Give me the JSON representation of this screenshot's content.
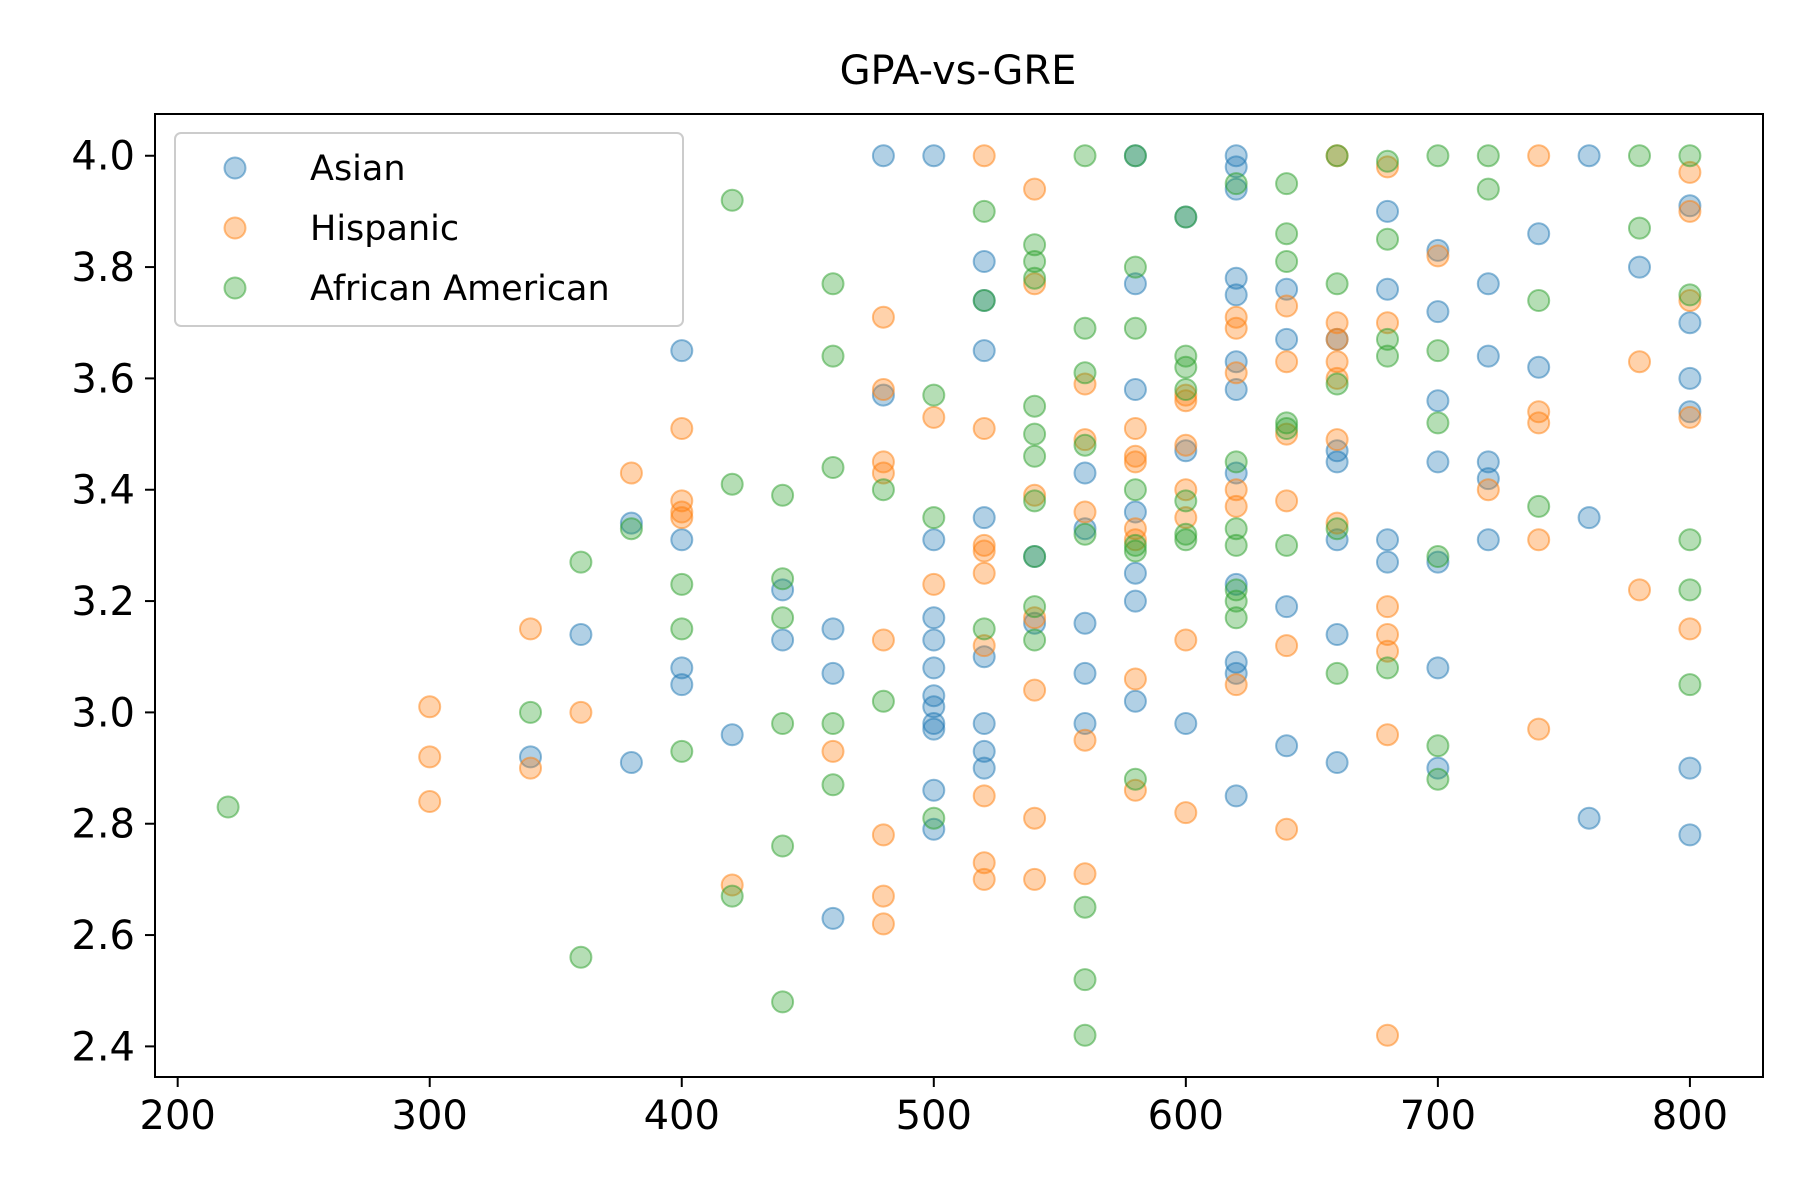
{
  "chart_data": {
    "type": "scatter",
    "title": "GPA-vs-GRE",
    "xlabel": "",
    "ylabel": "",
    "xlim": [
      191,
      829
    ],
    "ylim": [
      2.345,
      4.075
    ],
    "xticks": [
      200,
      300,
      400,
      500,
      600,
      700,
      800
    ],
    "xtick_labels": [
      "200",
      "300",
      "400",
      "500",
      "600",
      "700",
      "800"
    ],
    "yticks": [
      2.4,
      2.6,
      2.8,
      3.0,
      3.2,
      3.4,
      3.6,
      3.8,
      4.0
    ],
    "ytick_labels": [
      "2.4",
      "2.6",
      "2.8",
      "3.0",
      "3.2",
      "3.4",
      "3.6",
      "3.8",
      "4.0"
    ],
    "grid": false,
    "legend_position": "top-left",
    "marker_alpha": 0.35,
    "series": [
      {
        "name": "Asian",
        "color": "#1f77b4",
        "points": [
          [
            340,
            2.92
          ],
          [
            360,
            3.14
          ],
          [
            380,
            3.34
          ],
          [
            380,
            2.91
          ],
          [
            400,
            3.65
          ],
          [
            400,
            3.31
          ],
          [
            400,
            3.08
          ],
          [
            400,
            3.05
          ],
          [
            420,
            2.96
          ],
          [
            440,
            3.22
          ],
          [
            440,
            3.13
          ],
          [
            460,
            3.15
          ],
          [
            460,
            3.07
          ],
          [
            460,
            2.63
          ],
          [
            480,
            4.0
          ],
          [
            480,
            3.57
          ],
          [
            500,
            4.0
          ],
          [
            500,
            3.31
          ],
          [
            500,
            3.17
          ],
          [
            500,
            3.13
          ],
          [
            500,
            3.08
          ],
          [
            500,
            3.03
          ],
          [
            500,
            3.01
          ],
          [
            500,
            2.98
          ],
          [
            500,
            2.97
          ],
          [
            500,
            2.86
          ],
          [
            500,
            2.79
          ],
          [
            520,
            3.81
          ],
          [
            520,
            3.74
          ],
          [
            520,
            3.65
          ],
          [
            520,
            3.35
          ],
          [
            520,
            3.1
          ],
          [
            520,
            2.98
          ],
          [
            520,
            2.93
          ],
          [
            520,
            2.9
          ],
          [
            540,
            3.28
          ],
          [
            540,
            3.16
          ],
          [
            560,
            3.43
          ],
          [
            560,
            3.33
          ],
          [
            560,
            3.16
          ],
          [
            560,
            3.07
          ],
          [
            560,
            2.98
          ],
          [
            580,
            4.0
          ],
          [
            580,
            3.77
          ],
          [
            580,
            3.58
          ],
          [
            580,
            3.36
          ],
          [
            580,
            3.25
          ],
          [
            580,
            3.2
          ],
          [
            580,
            3.02
          ],
          [
            600,
            3.89
          ],
          [
            600,
            3.47
          ],
          [
            600,
            2.98
          ],
          [
            620,
            4.0
          ],
          [
            620,
            3.98
          ],
          [
            620,
            3.94
          ],
          [
            620,
            3.78
          ],
          [
            620,
            3.75
          ],
          [
            620,
            3.63
          ],
          [
            620,
            3.58
          ],
          [
            620,
            3.43
          ],
          [
            620,
            3.23
          ],
          [
            620,
            3.09
          ],
          [
            620,
            3.07
          ],
          [
            620,
            2.85
          ],
          [
            640,
            3.76
          ],
          [
            640,
            3.67
          ],
          [
            640,
            3.19
          ],
          [
            640,
            2.94
          ],
          [
            660,
            3.67
          ],
          [
            660,
            3.47
          ],
          [
            660,
            3.45
          ],
          [
            660,
            3.31
          ],
          [
            660,
            3.14
          ],
          [
            660,
            2.91
          ],
          [
            680,
            3.9
          ],
          [
            680,
            3.76
          ],
          [
            680,
            3.31
          ],
          [
            680,
            3.27
          ],
          [
            700,
            3.83
          ],
          [
            700,
            3.72
          ],
          [
            700,
            3.56
          ],
          [
            700,
            3.45
          ],
          [
            700,
            3.27
          ],
          [
            700,
            3.08
          ],
          [
            700,
            2.9
          ],
          [
            720,
            3.77
          ],
          [
            720,
            3.64
          ],
          [
            720,
            3.45
          ],
          [
            720,
            3.42
          ],
          [
            720,
            3.31
          ],
          [
            740,
            3.86
          ],
          [
            740,
            3.62
          ],
          [
            760,
            4.0
          ],
          [
            760,
            3.35
          ],
          [
            760,
            2.81
          ],
          [
            780,
            3.8
          ],
          [
            800,
            3.91
          ],
          [
            800,
            3.7
          ],
          [
            800,
            3.6
          ],
          [
            800,
            3.54
          ],
          [
            800,
            2.9
          ],
          [
            800,
            2.78
          ]
        ]
      },
      {
        "name": "Hispanic",
        "color": "#ff7f0e",
        "points": [
          [
            300,
            3.01
          ],
          [
            300,
            2.92
          ],
          [
            300,
            2.84
          ],
          [
            340,
            3.15
          ],
          [
            340,
            2.9
          ],
          [
            360,
            3.0
          ],
          [
            380,
            3.43
          ],
          [
            400,
            3.51
          ],
          [
            400,
            3.38
          ],
          [
            400,
            3.36
          ],
          [
            400,
            3.35
          ],
          [
            420,
            2.69
          ],
          [
            460,
            2.93
          ],
          [
            480,
            3.71
          ],
          [
            480,
            3.58
          ],
          [
            480,
            3.45
          ],
          [
            480,
            3.43
          ],
          [
            480,
            3.13
          ],
          [
            480,
            2.78
          ],
          [
            480,
            2.67
          ],
          [
            480,
            2.62
          ],
          [
            500,
            3.53
          ],
          [
            500,
            3.23
          ],
          [
            520,
            4.0
          ],
          [
            520,
            3.51
          ],
          [
            520,
            3.3
          ],
          [
            520,
            3.29
          ],
          [
            520,
            3.25
          ],
          [
            520,
            3.12
          ],
          [
            520,
            2.85
          ],
          [
            520,
            2.73
          ],
          [
            520,
            2.7
          ],
          [
            540,
            3.94
          ],
          [
            540,
            3.77
          ],
          [
            540,
            3.39
          ],
          [
            540,
            3.17
          ],
          [
            540,
            3.04
          ],
          [
            540,
            2.81
          ],
          [
            540,
            2.7
          ],
          [
            560,
            3.59
          ],
          [
            560,
            3.49
          ],
          [
            560,
            3.36
          ],
          [
            560,
            2.95
          ],
          [
            560,
            2.71
          ],
          [
            580,
            3.51
          ],
          [
            580,
            3.46
          ],
          [
            580,
            3.45
          ],
          [
            580,
            3.33
          ],
          [
            580,
            3.31
          ],
          [
            580,
            3.06
          ],
          [
            580,
            2.86
          ],
          [
            600,
            3.57
          ],
          [
            600,
            3.56
          ],
          [
            600,
            3.48
          ],
          [
            600,
            3.4
          ],
          [
            600,
            3.35
          ],
          [
            600,
            3.13
          ],
          [
            600,
            2.82
          ],
          [
            620,
            3.71
          ],
          [
            620,
            3.69
          ],
          [
            620,
            3.61
          ],
          [
            620,
            3.4
          ],
          [
            620,
            3.37
          ],
          [
            620,
            3.05
          ],
          [
            640,
            3.73
          ],
          [
            640,
            3.63
          ],
          [
            640,
            3.5
          ],
          [
            640,
            3.38
          ],
          [
            640,
            3.12
          ],
          [
            640,
            2.79
          ],
          [
            660,
            4.0
          ],
          [
            660,
            3.7
          ],
          [
            660,
            3.67
          ],
          [
            660,
            3.63
          ],
          [
            660,
            3.6
          ],
          [
            660,
            3.49
          ],
          [
            660,
            3.34
          ],
          [
            680,
            3.98
          ],
          [
            680,
            3.7
          ],
          [
            680,
            3.19
          ],
          [
            680,
            3.14
          ],
          [
            680,
            3.11
          ],
          [
            680,
            2.96
          ],
          [
            680,
            2.42
          ],
          [
            700,
            3.82
          ],
          [
            720,
            3.4
          ],
          [
            740,
            4.0
          ],
          [
            740,
            3.54
          ],
          [
            740,
            3.52
          ],
          [
            740,
            3.31
          ],
          [
            740,
            2.97
          ],
          [
            780,
            3.63
          ],
          [
            780,
            3.22
          ],
          [
            800,
            3.97
          ],
          [
            800,
            3.9
          ],
          [
            800,
            3.74
          ],
          [
            800,
            3.53
          ],
          [
            800,
            3.15
          ]
        ]
      },
      {
        "name": "African American",
        "color": "#2ca02c",
        "points": [
          [
            220,
            2.83
          ],
          [
            340,
            3.0
          ],
          [
            360,
            3.27
          ],
          [
            360,
            2.56
          ],
          [
            380,
            3.33
          ],
          [
            400,
            3.23
          ],
          [
            400,
            3.15
          ],
          [
            400,
            2.93
          ],
          [
            420,
            3.92
          ],
          [
            420,
            3.41
          ],
          [
            420,
            2.67
          ],
          [
            440,
            3.39
          ],
          [
            440,
            3.24
          ],
          [
            440,
            3.17
          ],
          [
            440,
            2.98
          ],
          [
            440,
            2.76
          ],
          [
            440,
            2.48
          ],
          [
            460,
            3.77
          ],
          [
            460,
            3.64
          ],
          [
            460,
            3.44
          ],
          [
            460,
            2.98
          ],
          [
            460,
            2.87
          ],
          [
            480,
            3.4
          ],
          [
            480,
            3.02
          ],
          [
            500,
            3.57
          ],
          [
            500,
            3.35
          ],
          [
            500,
            2.81
          ],
          [
            520,
            3.9
          ],
          [
            520,
            3.74
          ],
          [
            520,
            3.15
          ],
          [
            540,
            3.84
          ],
          [
            540,
            3.81
          ],
          [
            540,
            3.78
          ],
          [
            540,
            3.55
          ],
          [
            540,
            3.5
          ],
          [
            540,
            3.46
          ],
          [
            540,
            3.38
          ],
          [
            540,
            3.28
          ],
          [
            540,
            3.19
          ],
          [
            540,
            3.13
          ],
          [
            560,
            4.0
          ],
          [
            560,
            3.69
          ],
          [
            560,
            3.61
          ],
          [
            560,
            3.48
          ],
          [
            560,
            3.32
          ],
          [
            560,
            2.65
          ],
          [
            560,
            2.52
          ],
          [
            560,
            2.42
          ],
          [
            580,
            4.0
          ],
          [
            580,
            3.8
          ],
          [
            580,
            3.69
          ],
          [
            580,
            3.4
          ],
          [
            580,
            3.3
          ],
          [
            580,
            3.29
          ],
          [
            580,
            2.88
          ],
          [
            600,
            3.89
          ],
          [
            600,
            3.64
          ],
          [
            600,
            3.62
          ],
          [
            600,
            3.58
          ],
          [
            600,
            3.38
          ],
          [
            600,
            3.32
          ],
          [
            600,
            3.31
          ],
          [
            620,
            3.95
          ],
          [
            620,
            3.45
          ],
          [
            620,
            3.33
          ],
          [
            620,
            3.3
          ],
          [
            620,
            3.22
          ],
          [
            620,
            3.2
          ],
          [
            620,
            3.17
          ],
          [
            640,
            3.95
          ],
          [
            640,
            3.86
          ],
          [
            640,
            3.81
          ],
          [
            640,
            3.52
          ],
          [
            640,
            3.51
          ],
          [
            640,
            3.3
          ],
          [
            660,
            4.0
          ],
          [
            660,
            3.77
          ],
          [
            660,
            3.59
          ],
          [
            660,
            3.33
          ],
          [
            660,
            3.07
          ],
          [
            680,
            3.99
          ],
          [
            680,
            3.85
          ],
          [
            680,
            3.67
          ],
          [
            680,
            3.64
          ],
          [
            680,
            3.08
          ],
          [
            700,
            4.0
          ],
          [
            700,
            3.65
          ],
          [
            700,
            3.52
          ],
          [
            700,
            3.28
          ],
          [
            700,
            2.94
          ],
          [
            700,
            2.88
          ],
          [
            720,
            4.0
          ],
          [
            720,
            3.94
          ],
          [
            740,
            3.74
          ],
          [
            740,
            3.37
          ],
          [
            780,
            4.0
          ],
          [
            780,
            3.87
          ],
          [
            800,
            4.0
          ],
          [
            800,
            3.75
          ],
          [
            800,
            3.31
          ],
          [
            800,
            3.22
          ],
          [
            800,
            3.05
          ]
        ]
      }
    ]
  }
}
